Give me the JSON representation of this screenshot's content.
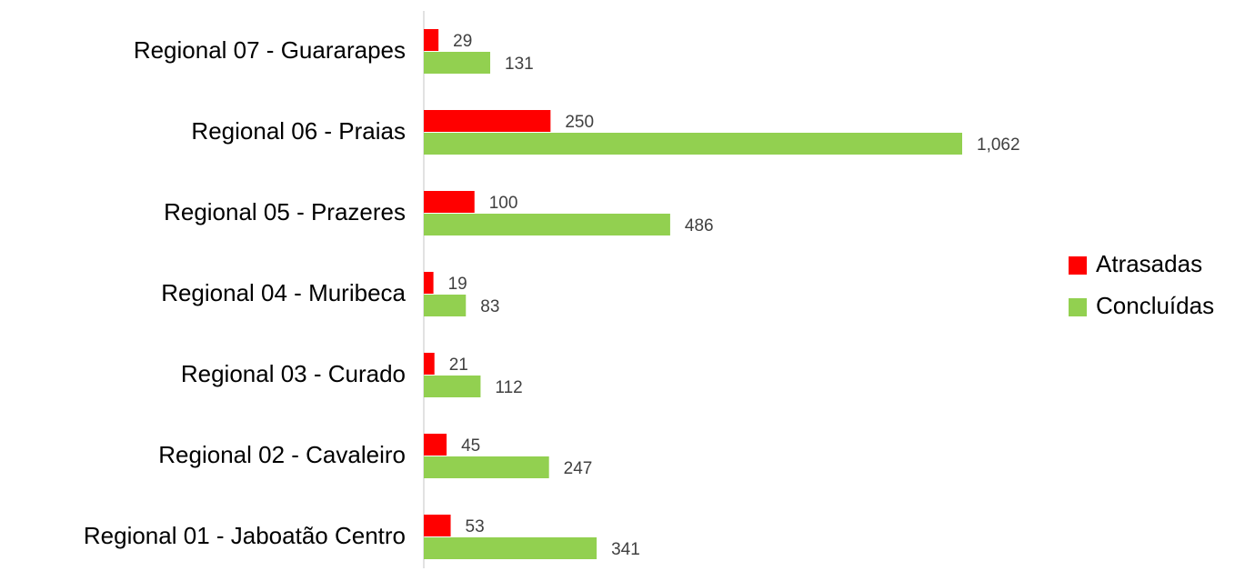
{
  "chart_data": {
    "type": "hbar",
    "categories": [
      "Regional 07 - Guararapes",
      "Regional 06 - Praias",
      "Regional 05 - Prazeres",
      "Regional 04 - Muribeca",
      "Regional 03 - Curado",
      "Regional 02 - Cavaleiro",
      "Regional 01 - Jaboatão Centro"
    ],
    "series": [
      {
        "name": "Atrasadas",
        "color": "#ff0000",
        "values": [
          29,
          250,
          100,
          19,
          21,
          45,
          53
        ]
      },
      {
        "name": "Concluídas",
        "color": "#92d050",
        "values": [
          131,
          1062,
          486,
          83,
          112,
          247,
          341
        ],
        "value_labels": [
          "131",
          "1,062",
          "486",
          "83",
          "112",
          "247",
          "341"
        ]
      }
    ],
    "legend": "right"
  }
}
